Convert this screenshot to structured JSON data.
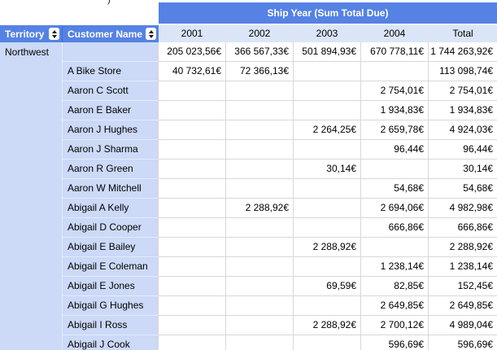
{
  "artifact": {
    "text": ")"
  },
  "band": {
    "label": "Ship Year (Sum Total Due)"
  },
  "columns": {
    "territory": "Territory",
    "customer": "Customer Name",
    "years": [
      "2001",
      "2002",
      "2003",
      "2004"
    ],
    "total": "Total"
  },
  "territory_value": "Northwest",
  "rows": [
    {
      "customer": "",
      "values": [
        "205 023,56€",
        "366 567,33€",
        "501 894,93€",
        "670 778,11€",
        "1 744 263,92€"
      ]
    },
    {
      "customer": "A Bike Store",
      "values": [
        "40 732,61€",
        "72 366,13€",
        "",
        "",
        "113 098,74€"
      ]
    },
    {
      "customer": "Aaron C Scott",
      "values": [
        "",
        "",
        "",
        "2 754,01€",
        "2 754,01€"
      ]
    },
    {
      "customer": "Aaron E Baker",
      "values": [
        "",
        "",
        "",
        "1 934,83€",
        "1 934,83€"
      ]
    },
    {
      "customer": "Aaron J Hughes",
      "values": [
        "",
        "",
        "2 264,25€",
        "2 659,78€",
        "4 924,03€"
      ]
    },
    {
      "customer": "Aaron J Sharma",
      "values": [
        "",
        "",
        "",
        "96,44€",
        "96,44€"
      ]
    },
    {
      "customer": "Aaron R Green",
      "values": [
        "",
        "",
        "30,14€",
        "",
        "30,14€"
      ]
    },
    {
      "customer": "Aaron W Mitchell",
      "values": [
        "",
        "",
        "",
        "54,68€",
        "54,68€"
      ]
    },
    {
      "customer": "Abigail A Kelly",
      "values": [
        "",
        "2 288,92€",
        "",
        "2 694,06€",
        "4 982,98€"
      ]
    },
    {
      "customer": "Abigail D Cooper",
      "values": [
        "",
        "",
        "",
        "666,86€",
        "666,86€"
      ]
    },
    {
      "customer": "Abigail E Bailey",
      "values": [
        "",
        "",
        "2 288,92€",
        "",
        "2 288,92€"
      ]
    },
    {
      "customer": "Abigail E Coleman",
      "values": [
        "",
        "",
        "",
        "1 238,14€",
        "1 238,14€"
      ]
    },
    {
      "customer": "Abigail E Jones",
      "values": [
        "",
        "",
        "69,59€",
        "82,85€",
        "152,45€"
      ]
    },
    {
      "customer": "Abigail G Hughes",
      "values": [
        "",
        "",
        "",
        "2 649,85€",
        "2 649,85€"
      ]
    },
    {
      "customer": "Abigail I Ross",
      "values": [
        "",
        "",
        "2 288,92€",
        "2 700,12€",
        "4 989,04€"
      ]
    },
    {
      "customer": "Abigail J Cook",
      "values": [
        "",
        "",
        "",
        "596,69€",
        "596,69€"
      ]
    }
  ],
  "colors": {
    "header_blue": "#5582e4",
    "header_light_blue": "#dbe5f8",
    "row_label_blue": "#ccd9f7",
    "grid_line": "#d8d8d8"
  },
  "icons": {
    "sort": "sort-up-down-arrows"
  }
}
